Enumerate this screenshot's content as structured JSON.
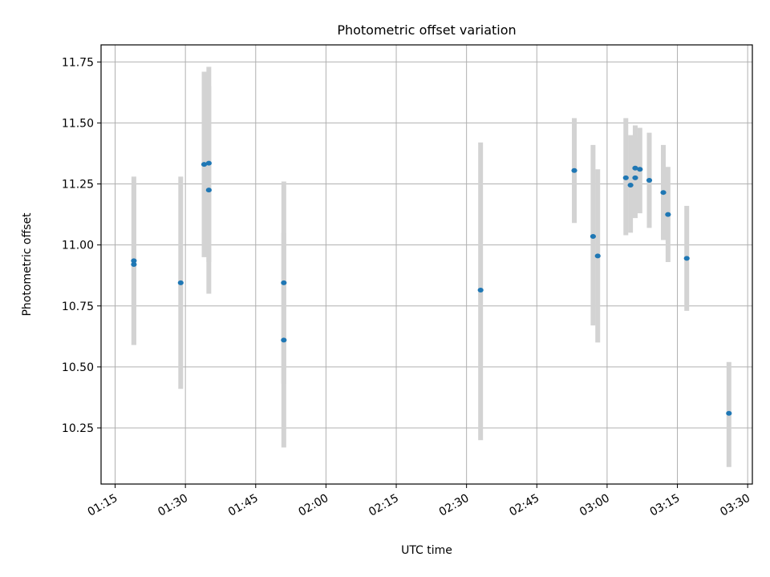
{
  "chart_data": {
    "type": "scatter",
    "title": "Photometric offset variation",
    "xlabel": "UTC time",
    "ylabel": "Photometric offset",
    "grid": true,
    "colors": {
      "points": "#1f77b4",
      "errorbars": "#d3d3d3",
      "grid": "#b0b0b0"
    },
    "xlim": [
      "01:12",
      "03:31"
    ],
    "ylim": [
      10.02,
      11.82
    ],
    "x_ticks": [
      "01:15",
      "01:30",
      "01:45",
      "02:00",
      "02:15",
      "02:30",
      "02:45",
      "03:00",
      "03:15",
      "03:30"
    ],
    "y_ticks": [
      "10.25",
      "10.50",
      "10.75",
      "11.00",
      "11.25",
      "11.50",
      "11.75"
    ],
    "series": [
      {
        "points": [
          {
            "x": "01:19",
            "y": 10.92,
            "low": 10.59,
            "high": 11.25
          },
          {
            "x": "01:19",
            "y": 10.935,
            "low": 10.59,
            "high": 11.28
          },
          {
            "x": "01:29",
            "y": 10.845,
            "low": 10.41,
            "high": 11.28
          },
          {
            "x": "01:34",
            "y": 11.33,
            "low": 10.95,
            "high": 11.71
          },
          {
            "x": "01:35",
            "y": 11.335,
            "low": 10.93,
            "high": 11.73
          },
          {
            "x": "01:35",
            "y": 11.225,
            "low": 10.8,
            "high": 11.65
          },
          {
            "x": "01:51",
            "y": 10.61,
            "low": 10.17,
            "high": 11.05
          },
          {
            "x": "01:51",
            "y": 10.845,
            "low": 10.43,
            "high": 11.26
          },
          {
            "x": "02:33",
            "y": 10.815,
            "low": 10.2,
            "high": 11.42
          },
          {
            "x": "02:53",
            "y": 11.305,
            "low": 11.09,
            "high": 11.52
          },
          {
            "x": "02:57",
            "y": 11.035,
            "low": 10.67,
            "high": 11.41
          },
          {
            "x": "02:58",
            "y": 10.955,
            "low": 10.6,
            "high": 11.31
          },
          {
            "x": "03:04",
            "y": 11.275,
            "low": 11.04,
            "high": 11.52
          },
          {
            "x": "03:05",
            "y": 11.245,
            "low": 11.05,
            "high": 11.45
          },
          {
            "x": "03:06",
            "y": 11.275,
            "low": 11.11,
            "high": 11.44
          },
          {
            "x": "03:06",
            "y": 11.315,
            "low": 11.14,
            "high": 11.49
          },
          {
            "x": "03:07",
            "y": 11.31,
            "low": 11.13,
            "high": 11.48
          },
          {
            "x": "03:09",
            "y": 11.265,
            "low": 11.07,
            "high": 11.46
          },
          {
            "x": "03:12",
            "y": 11.215,
            "low": 11.02,
            "high": 11.41
          },
          {
            "x": "03:13",
            "y": 11.125,
            "low": 10.93,
            "high": 11.32
          },
          {
            "x": "03:17",
            "y": 10.945,
            "low": 10.73,
            "high": 11.16
          },
          {
            "x": "03:26",
            "y": 10.31,
            "low": 10.09,
            "high": 10.52
          }
        ]
      }
    ]
  }
}
